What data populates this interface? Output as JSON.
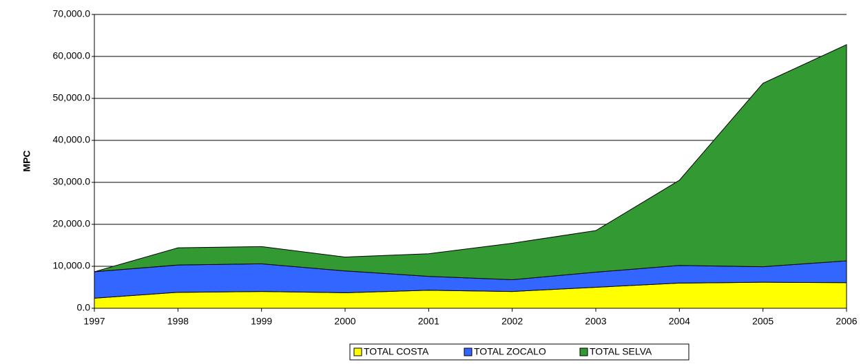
{
  "chart_data": {
    "type": "stacked_area",
    "y_label": "MPC",
    "categories": [
      "1997",
      "1998",
      "1999",
      "2000",
      "2001",
      "2002",
      "2003",
      "2004",
      "2005",
      "2006"
    ],
    "series": [
      {
        "name": "TOTAL COSTA",
        "color": "#ffff00",
        "values": [
          2400,
          3800,
          4000,
          3700,
          4300,
          4000,
          5000,
          6000,
          6200,
          6100
        ]
      },
      {
        "name": "TOTAL ZOCALO",
        "color": "#3366ff",
        "values": [
          6300,
          6500,
          6600,
          5200,
          3300,
          2800,
          3600,
          4200,
          3700,
          5200
        ]
      },
      {
        "name": "TOTAL SELVA",
        "color": "#339933",
        "values": [
          0,
          4100,
          4100,
          3300,
          5400,
          8700,
          9900,
          20300,
          43700,
          51500
        ]
      }
    ],
    "ylim": [
      0,
      70000
    ],
    "yticks": [
      {
        "value": 0,
        "label": "0.0"
      },
      {
        "value": 10000,
        "label": "10,000.0"
      },
      {
        "value": 20000,
        "label": "20,000.0"
      },
      {
        "value": 30000,
        "label": "30,000.0"
      },
      {
        "value": 40000,
        "label": "40,000.0"
      },
      {
        "value": 50000,
        "label": "50,000.0"
      },
      {
        "value": 60000,
        "label": "60,000.0"
      },
      {
        "value": 70000,
        "label": "70,000.0"
      }
    ],
    "grid": true,
    "legend": "bottom"
  }
}
